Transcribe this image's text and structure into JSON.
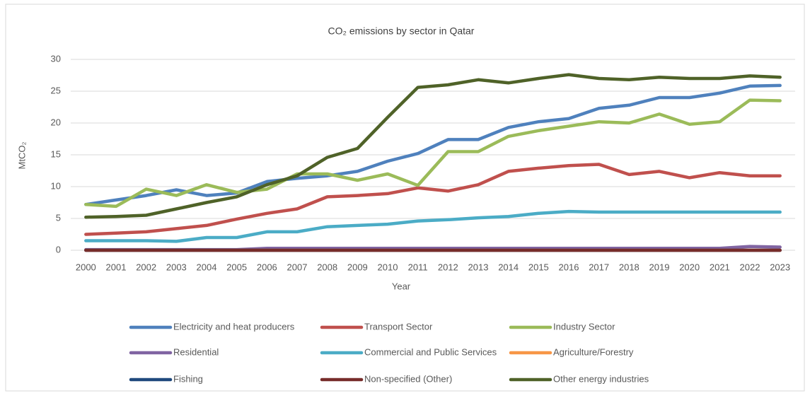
{
  "chart_data": {
    "type": "line",
    "title": "CO₂ emissions by sector in Qatar",
    "x_label": "Year",
    "y_label": "MtCO₂",
    "categories": [
      "2000",
      "2001",
      "2002",
      "2003",
      "2004",
      "2005",
      "2006",
      "2007",
      "2008",
      "2009",
      "2010",
      "2011",
      "2012",
      "2013",
      "2014",
      "2015",
      "2016",
      "2017",
      "2018",
      "2019",
      "2020",
      "2021",
      "2022",
      "2023"
    ],
    "ylim": [
      0,
      30
    ],
    "yticks": [
      0,
      5,
      10,
      15,
      20,
      25,
      30
    ],
    "grid": true,
    "series": [
      {
        "name": "Electricity and heat producers",
        "color": "#4f81bd",
        "values": [
          7.2,
          7.9,
          8.6,
          9.5,
          8.6,
          9.0,
          10.8,
          11.3,
          11.7,
          12.4,
          14.0,
          15.2,
          17.4,
          17.4,
          19.3,
          20.2,
          20.7,
          22.3,
          22.8,
          24.0,
          24.0,
          24.7,
          25.8,
          25.9
        ]
      },
      {
        "name": "Transport Sector",
        "color": "#c0504d",
        "values": [
          2.5,
          2.7,
          2.9,
          3.4,
          3.9,
          4.9,
          5.8,
          6.5,
          8.4,
          8.6,
          8.9,
          9.8,
          9.3,
          10.3,
          12.4,
          12.9,
          13.3,
          13.5,
          11.9,
          12.4,
          11.4,
          12.2,
          11.7,
          11.7
        ]
      },
      {
        "name": "Industry Sector",
        "color": "#9bbb59",
        "values": [
          7.2,
          6.9,
          9.6,
          8.6,
          10.3,
          9.1,
          9.6,
          12.0,
          12.0,
          11.0,
          12.0,
          10.2,
          15.5,
          15.5,
          17.9,
          18.8,
          19.5,
          20.2,
          20.0,
          21.4,
          19.8,
          20.2,
          23.6,
          23.5
        ]
      },
      {
        "name": "Residential",
        "color": "#8064a2",
        "values": [
          0.1,
          0.1,
          0.1,
          0.1,
          0.1,
          0.1,
          0.3,
          0.3,
          0.3,
          0.3,
          0.3,
          0.3,
          0.3,
          0.3,
          0.3,
          0.3,
          0.3,
          0.3,
          0.3,
          0.3,
          0.3,
          0.3,
          0.6,
          0.5
        ]
      },
      {
        "name": "Commercial and Public Services",
        "color": "#4bacc6",
        "values": [
          1.5,
          1.5,
          1.5,
          1.4,
          2.0,
          2.0,
          2.9,
          2.9,
          3.7,
          3.9,
          4.1,
          4.6,
          4.8,
          5.1,
          5.3,
          5.8,
          6.1,
          6.0,
          6.0,
          6.0,
          6.0,
          6.0,
          6.0,
          6.0
        ]
      },
      {
        "name": "Agriculture/Forestry",
        "color": "#f79646",
        "values": [
          0,
          0,
          0,
          0,
          0,
          0,
          0,
          0,
          0,
          0,
          0,
          0,
          0,
          0,
          0,
          0,
          0,
          0,
          0,
          0,
          0,
          0,
          0,
          0
        ]
      },
      {
        "name": "Fishing",
        "color": "#1f497d",
        "values": [
          0,
          0,
          0,
          0,
          0,
          0,
          0,
          0,
          0,
          0,
          0,
          0,
          0,
          0,
          0,
          0,
          0,
          0,
          0,
          0,
          0,
          0,
          0,
          0
        ]
      },
      {
        "name": "Non-specified (Other)",
        "color": "#772c2a",
        "values": [
          0,
          0,
          0,
          0,
          0,
          0,
          0,
          0,
          0,
          0,
          0,
          0,
          0,
          0,
          0,
          0,
          0,
          0,
          0,
          0,
          0,
          0,
          0,
          0
        ]
      },
      {
        "name": "Other energy industries",
        "color": "#4f6228",
        "values": [
          5.2,
          5.3,
          5.5,
          6.5,
          7.5,
          8.4,
          10.3,
          11.7,
          14.6,
          16.0,
          20.9,
          25.6,
          26.0,
          26.8,
          26.3,
          27.0,
          27.6,
          27.0,
          26.8,
          27.2,
          27.0,
          27.0,
          27.4,
          27.2
        ]
      }
    ]
  }
}
